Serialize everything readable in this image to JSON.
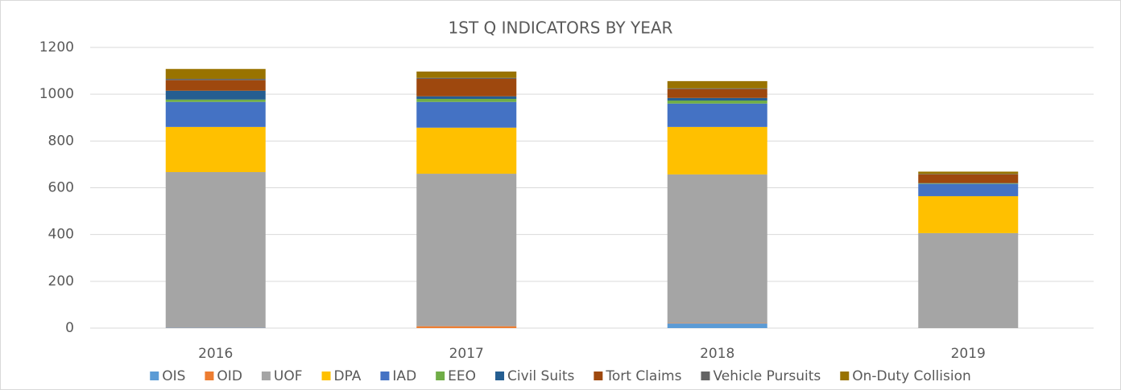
{
  "chart_data": {
    "type": "stacked_bar",
    "title": "1ST Q INDICATORS BY YEAR",
    "categories": [
      "2016",
      "2017",
      "2018",
      "2019"
    ],
    "series": [
      {
        "name": "OIS",
        "color": "#5b9bd5",
        "values": [
          2,
          0,
          20,
          0
        ]
      },
      {
        "name": "OID",
        "color": "#ed7d31",
        "values": [
          1,
          8,
          2,
          0
        ]
      },
      {
        "name": "UOF",
        "color": "#a5a5a5",
        "values": [
          664,
          652,
          635,
          406
        ]
      },
      {
        "name": "DPA",
        "color": "#ffc000",
        "values": [
          193,
          197,
          203,
          158
        ]
      },
      {
        "name": "IAD",
        "color": "#4472c4",
        "values": [
          107,
          110,
          100,
          52
        ]
      },
      {
        "name": "EEO",
        "color": "#70ad47",
        "values": [
          10,
          13,
          13,
          2
        ]
      },
      {
        "name": "Civil Suits",
        "color": "#255e91",
        "values": [
          38,
          11,
          11,
          2
        ]
      },
      {
        "name": "Tort Claims",
        "color": "#9e480e",
        "values": [
          45,
          75,
          38,
          37
        ]
      },
      {
        "name": "Vehicle Pursuits",
        "color": "#636363",
        "values": [
          6,
          4,
          3,
          2
        ]
      },
      {
        "name": "On-Duty Collision",
        "color": "#997300",
        "values": [
          42,
          27,
          31,
          10
        ]
      }
    ],
    "ylim": [
      0,
      1200
    ],
    "yticks": [
      0,
      200,
      400,
      600,
      800,
      1000,
      1200
    ],
    "grid": true,
    "legend": "bottom"
  }
}
